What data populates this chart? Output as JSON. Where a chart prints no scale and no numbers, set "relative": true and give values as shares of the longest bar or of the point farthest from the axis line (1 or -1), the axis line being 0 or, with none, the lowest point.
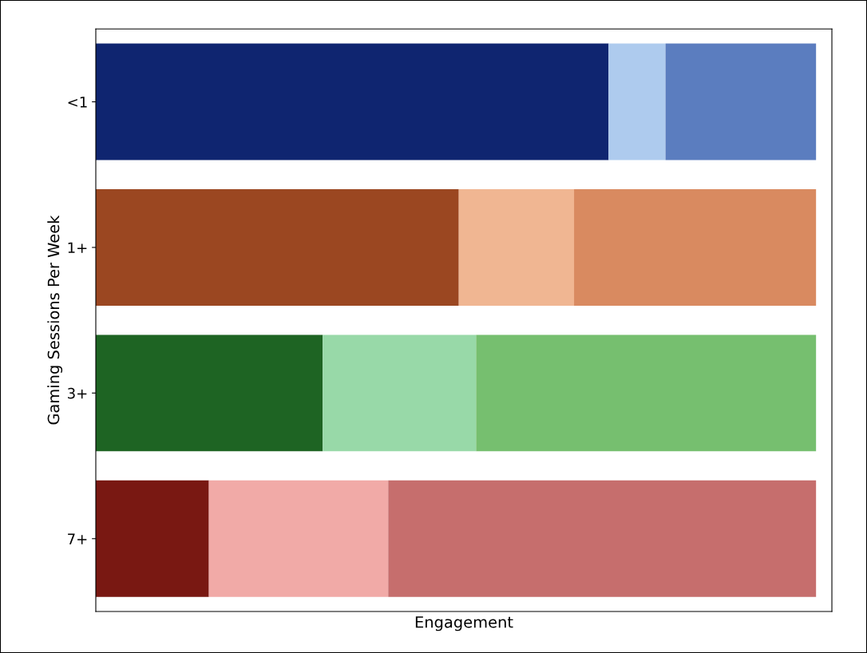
{
  "chart_data": {
    "type": "bar",
    "orientation": "horizontal",
    "stacked": true,
    "relative": true,
    "xlabel": "Engagement",
    "ylabel": "Gaming Sessions Per Week",
    "categories": [
      "<1",
      "1+",
      "3+",
      "7+"
    ],
    "series": [
      {
        "colors": [
          "#0f2570",
          "#9b4721",
          "#1e6423",
          "#791812"
        ],
        "values": [
          0.712,
          0.504,
          0.315,
          0.157
        ]
      },
      {
        "colors": [
          "#aecbee",
          "#f0b692",
          "#98d9a8",
          "#f1aaa7"
        ],
        "values": [
          0.079,
          0.16,
          0.213,
          0.249
        ]
      },
      {
        "colors": [
          "#5b7dbf",
          "#d98a60",
          "#76bf6f",
          "#c66e6d"
        ],
        "values": [
          0.209,
          0.336,
          0.472,
          0.594
        ]
      }
    ],
    "tick_labels": "y",
    "grid": false,
    "legend": false
  }
}
